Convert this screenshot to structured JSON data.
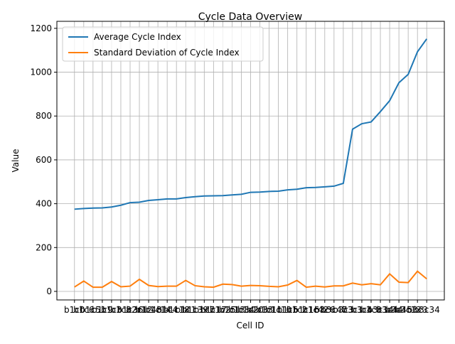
{
  "chart_data": {
    "type": "line",
    "title": "Cycle Data Overview",
    "x_label": "Cell ID",
    "y_label": "Value",
    "categories": [
      "b1c0",
      "b1c6",
      "b1c51",
      "b1c9",
      "b1c3",
      "b1c8",
      "b1c36",
      "b2c12",
      "b1c48",
      "b1c14",
      "b1c4",
      "b1c18",
      "b1c1",
      "b1c39",
      "b1c7",
      "b1c17",
      "b1c25",
      "b1c13",
      "b1c34",
      "b1c20",
      "b1c33",
      "b1c11",
      "b1c10",
      "b1c5",
      "b1c2",
      "b1c16",
      "b1c42",
      "b3c6",
      "b3c47",
      "b3c3",
      "b3c1",
      "b3c4",
      "b3c8",
      "b3c14",
      "b3c44",
      "b3c45",
      "b3c13",
      "b3c3",
      "b3c34"
    ],
    "series": [
      {
        "name": "Average Cycle Index",
        "color": "#1f77b4",
        "values": [
          375,
          378,
          380,
          381,
          385,
          393,
          405,
          407,
          415,
          418,
          422,
          422,
          428,
          432,
          435,
          436,
          437,
          440,
          443,
          452,
          453,
          456,
          457,
          463,
          466,
          473,
          474,
          477,
          480,
          493,
          740,
          765,
          773,
          820,
          870,
          952,
          990,
          1093,
          1152
        ]
      },
      {
        "name": "Standard Deviation of Cycle Index",
        "color": "#ff7f0e",
        "values": [
          20,
          47,
          19,
          19,
          45,
          21,
          24,
          55,
          27,
          22,
          24,
          24,
          50,
          26,
          21,
          19,
          33,
          31,
          24,
          27,
          26,
          23,
          21,
          29,
          50,
          19,
          24,
          20,
          25,
          25,
          38,
          30,
          35,
          30,
          80,
          42,
          40,
          92,
          57
        ]
      }
    ],
    "ylim": [
      -39,
      1232
    ],
    "yticks": [
      0,
      200,
      400,
      600,
      800,
      1000,
      1200
    ],
    "grid": true,
    "legend": "upper left"
  }
}
